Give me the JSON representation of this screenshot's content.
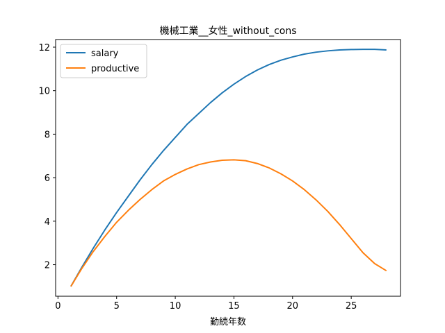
{
  "chart_data": {
    "type": "line",
    "title": "機械工業__女性_without_cons",
    "xlabel": "勤続年数",
    "ylabel": "",
    "xlim": [
      -0.2,
      29.2
    ],
    "ylim": [
      0.55,
      12.35
    ],
    "x_ticks": [
      0,
      5,
      10,
      15,
      20,
      25
    ],
    "y_ticks": [
      2,
      4,
      6,
      8,
      10,
      12
    ],
    "grid": false,
    "legend_position": "top-left",
    "series": [
      {
        "name": "salary",
        "color": "#1f77b4",
        "x": [
          1.1,
          2,
          3,
          4,
          5,
          6,
          7,
          8,
          9,
          10,
          11,
          12,
          13,
          14,
          15,
          16,
          17,
          18,
          19,
          20,
          21,
          22,
          23,
          24,
          25,
          26,
          27,
          28
        ],
        "y": [
          1.0,
          1.85,
          2.75,
          3.6,
          4.4,
          5.15,
          5.9,
          6.6,
          7.25,
          7.85,
          8.45,
          8.95,
          9.45,
          9.9,
          10.3,
          10.65,
          10.95,
          11.2,
          11.4,
          11.55,
          11.68,
          11.77,
          11.83,
          11.87,
          11.89,
          11.9,
          11.9,
          11.87
        ]
      },
      {
        "name": "productive",
        "color": "#ff7f0e",
        "x": [
          1.1,
          2,
          3,
          4,
          5,
          6,
          7,
          8,
          9,
          10,
          11,
          12,
          13,
          14,
          15,
          16,
          17,
          18,
          19,
          20,
          21,
          22,
          23,
          24,
          25,
          26,
          27,
          28
        ],
        "y": [
          1.0,
          1.8,
          2.6,
          3.3,
          3.95,
          4.5,
          5.0,
          5.45,
          5.85,
          6.15,
          6.4,
          6.6,
          6.72,
          6.8,
          6.82,
          6.78,
          6.65,
          6.45,
          6.18,
          5.85,
          5.45,
          4.98,
          4.45,
          3.85,
          3.2,
          2.55,
          2.05,
          1.72
        ]
      }
    ]
  }
}
